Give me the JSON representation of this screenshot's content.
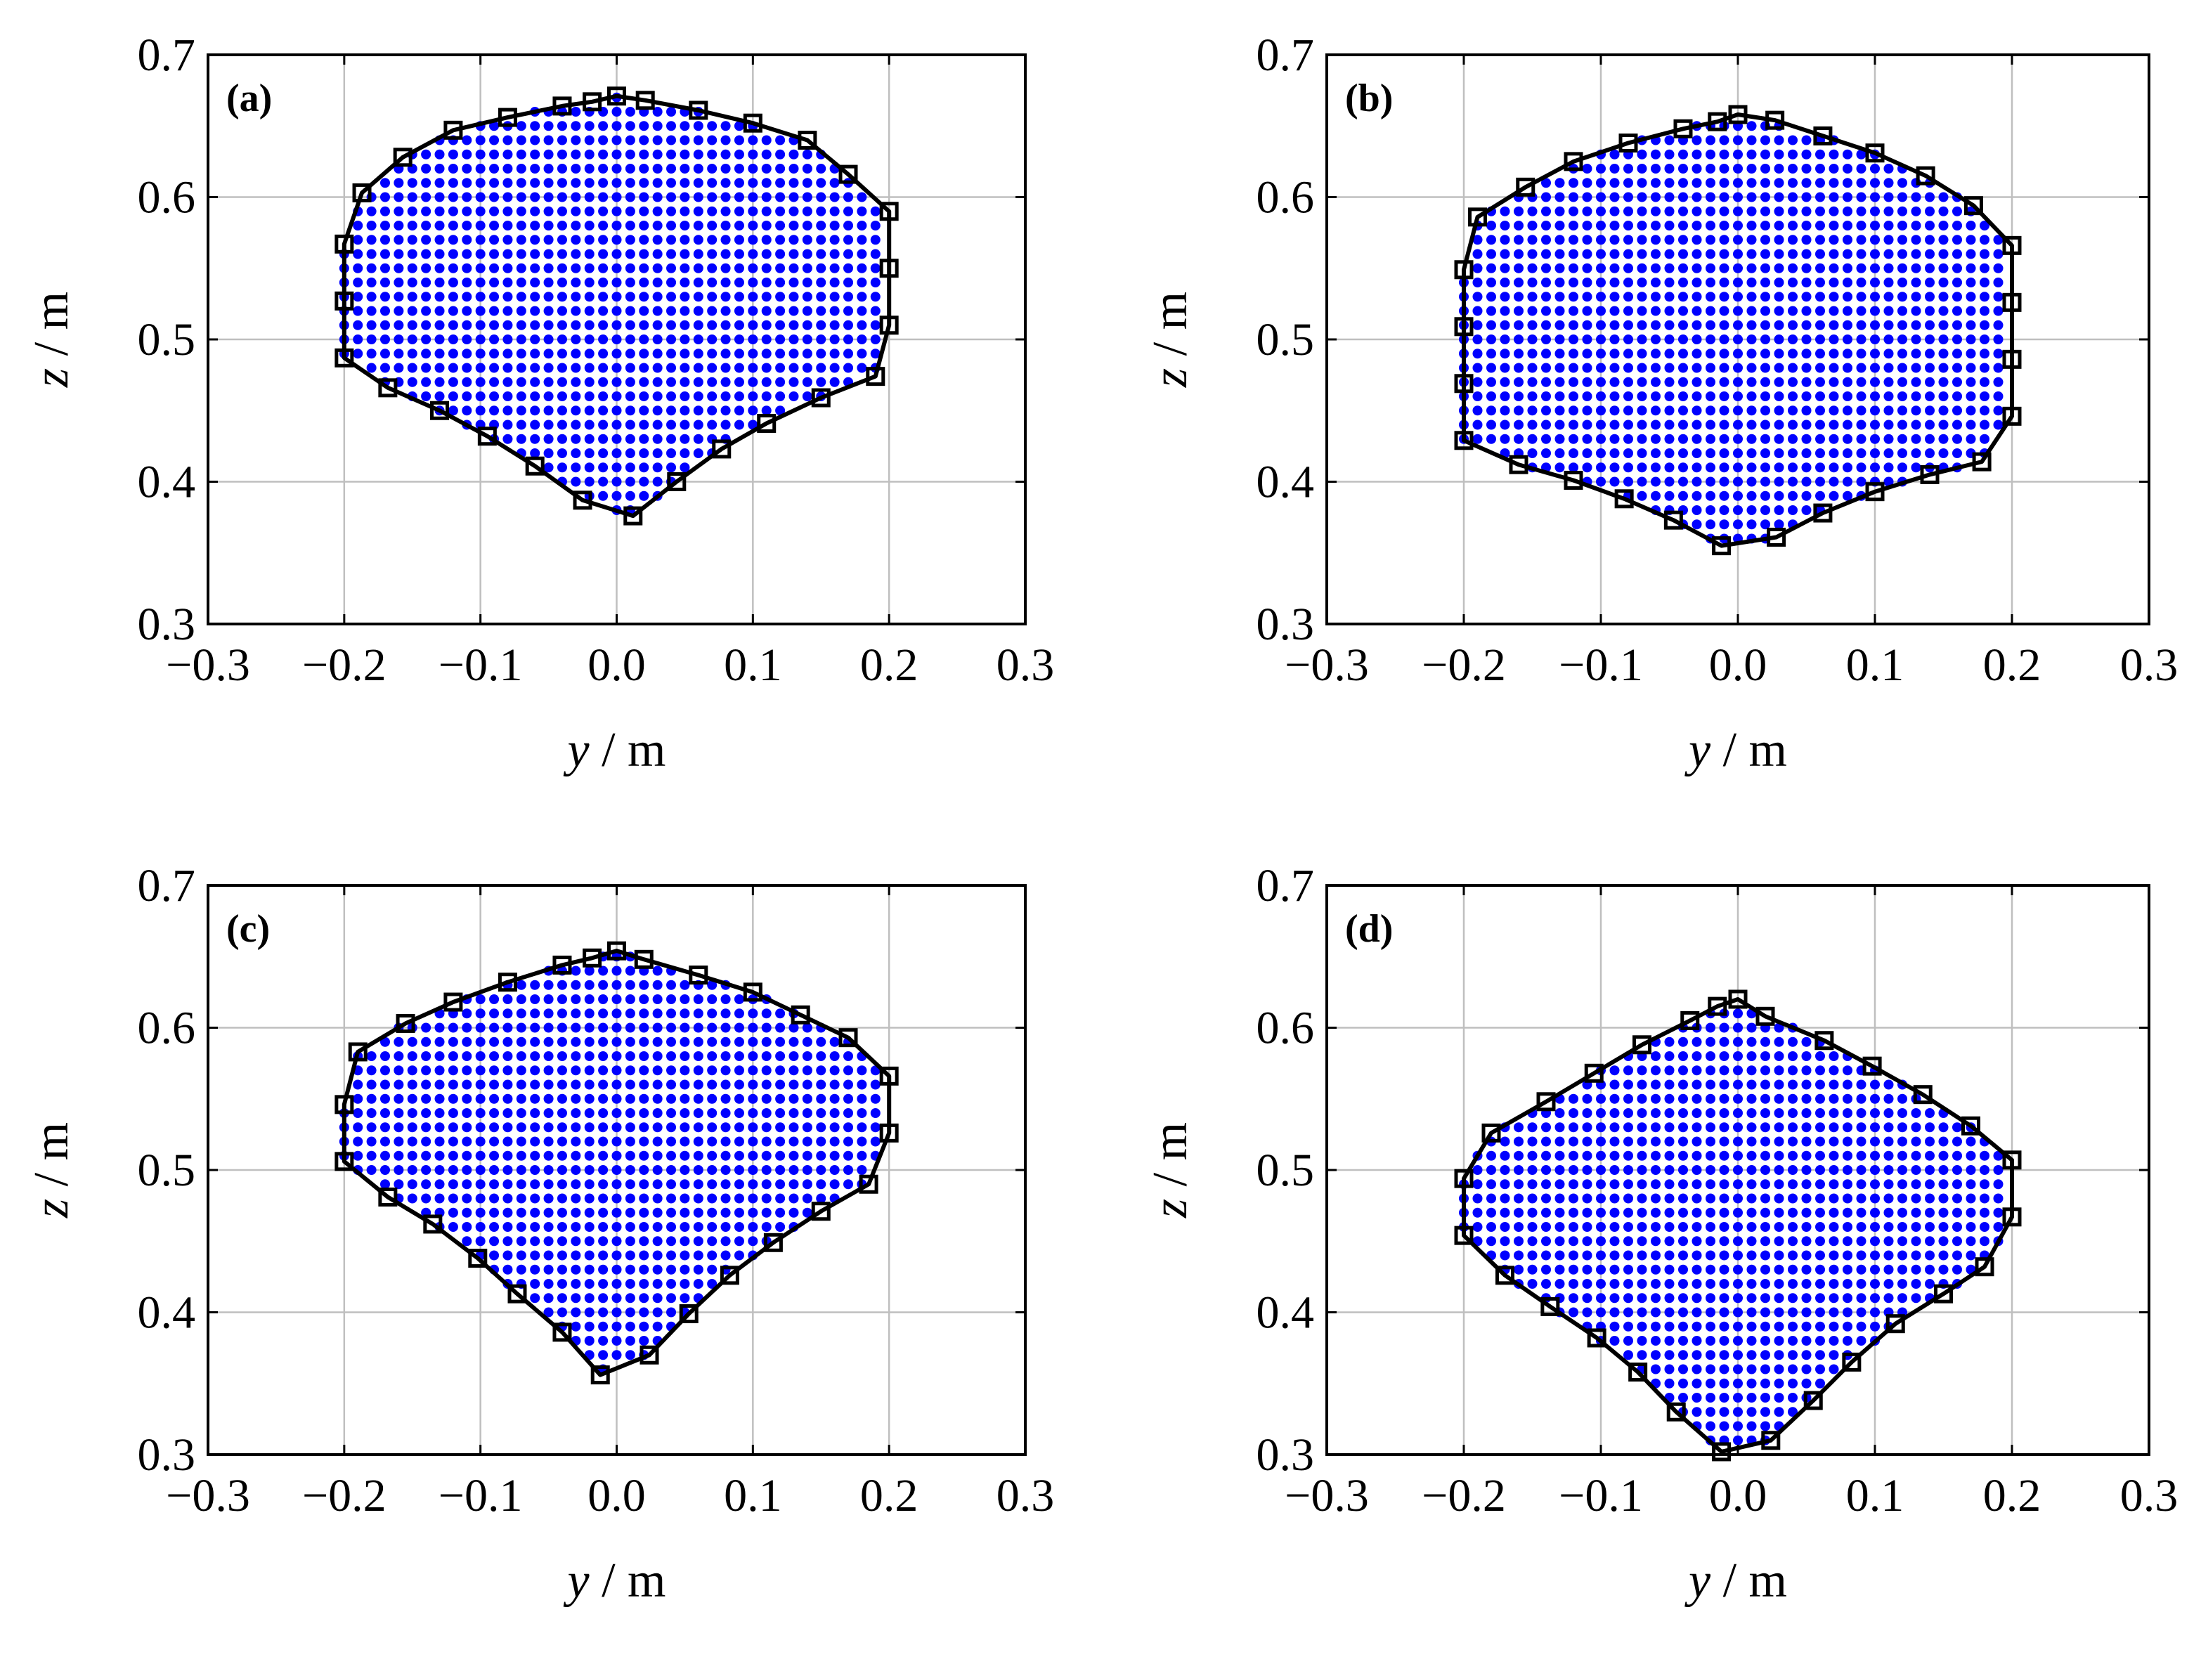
{
  "colors": {
    "interior_points": "#0000ff",
    "boundary": "#000000",
    "grid": "#bfbfbf"
  },
  "chart_data": [
    {
      "type": "scatter",
      "panel_label": "(a)",
      "xlabel_var": "y",
      "xlabel_unit": " / m",
      "ylabel_var": "z",
      "ylabel_unit": " / m",
      "xlim": [
        -0.3,
        0.3
      ],
      "ylim": [
        0.3,
        0.7
      ],
      "xticks": [
        -0.3,
        -0.2,
        -0.1,
        0.0,
        0.1,
        0.2,
        0.3
      ],
      "xtick_labels": [
        "−0.3",
        "−0.2",
        "−0.1",
        "0.0",
        "0.1",
        "0.2",
        "0.3"
      ],
      "yticks": [
        0.3,
        0.4,
        0.5,
        0.6,
        0.7
      ],
      "ytick_labels": [
        "0.3",
        "0.4",
        "0.5",
        "0.6",
        "0.7"
      ],
      "grid": true,
      "interior_points_spacing": [
        0.01,
        0.01
      ],
      "boundary_points": [
        [
          0.0,
          0.671
        ],
        [
          0.021,
          0.668
        ],
        [
          0.06,
          0.661
        ],
        [
          0.1,
          0.652
        ],
        [
          0.14,
          0.64
        ],
        [
          0.17,
          0.616
        ],
        [
          0.2,
          0.59
        ],
        [
          0.2,
          0.55
        ],
        [
          0.2,
          0.51
        ],
        [
          0.19,
          0.474
        ],
        [
          0.15,
          0.459
        ],
        [
          0.11,
          0.441
        ],
        [
          0.077,
          0.423
        ],
        [
          0.044,
          0.4
        ],
        [
          0.012,
          0.376
        ],
        [
          -0.025,
          0.387
        ],
        [
          -0.06,
          0.411
        ],
        [
          -0.095,
          0.432
        ],
        [
          -0.13,
          0.45
        ],
        [
          -0.168,
          0.466
        ],
        [
          -0.2,
          0.487
        ],
        [
          -0.2,
          0.527
        ],
        [
          -0.2,
          0.567
        ],
        [
          -0.187,
          0.603
        ],
        [
          -0.157,
          0.628
        ],
        [
          -0.12,
          0.647
        ],
        [
          -0.08,
          0.656
        ],
        [
          -0.04,
          0.664
        ],
        [
          -0.018,
          0.667
        ]
      ]
    },
    {
      "type": "scatter",
      "panel_label": "(b)",
      "xlabel_var": "y",
      "xlabel_unit": " / m",
      "ylabel_var": "z",
      "ylabel_unit": " / m",
      "xlim": [
        -0.3,
        0.3
      ],
      "ylim": [
        0.3,
        0.7
      ],
      "xticks": [
        -0.3,
        -0.2,
        -0.1,
        0.0,
        0.1,
        0.2,
        0.3
      ],
      "xtick_labels": [
        "−0.3",
        "−0.2",
        "−0.1",
        "0.0",
        "0.1",
        "0.2",
        "0.3"
      ],
      "yticks": [
        0.3,
        0.4,
        0.5,
        0.6,
        0.7
      ],
      "ytick_labels": [
        "0.3",
        "0.4",
        "0.5",
        "0.6",
        "0.7"
      ],
      "grid": true,
      "interior_points_spacing": [
        0.01,
        0.01
      ],
      "boundary_points": [
        [
          0.0,
          0.658
        ],
        [
          0.027,
          0.654
        ],
        [
          0.062,
          0.643
        ],
        [
          0.1,
          0.631
        ],
        [
          0.137,
          0.615
        ],
        [
          0.172,
          0.594
        ],
        [
          0.2,
          0.566
        ],
        [
          0.2,
          0.526
        ],
        [
          0.2,
          0.486
        ],
        [
          0.2,
          0.446
        ],
        [
          0.178,
          0.414
        ],
        [
          0.14,
          0.405
        ],
        [
          0.1,
          0.393
        ],
        [
          0.062,
          0.378
        ],
        [
          0.028,
          0.361
        ],
        [
          -0.012,
          0.355
        ],
        [
          -0.047,
          0.373
        ],
        [
          -0.083,
          0.388
        ],
        [
          -0.12,
          0.401
        ],
        [
          -0.16,
          0.412
        ],
        [
          -0.2,
          0.429
        ],
        [
          -0.2,
          0.469
        ],
        [
          -0.2,
          0.509
        ],
        [
          -0.2,
          0.549
        ],
        [
          -0.19,
          0.586
        ],
        [
          -0.155,
          0.607
        ],
        [
          -0.12,
          0.625
        ],
        [
          -0.08,
          0.638
        ],
        [
          -0.04,
          0.648
        ],
        [
          -0.015,
          0.653
        ]
      ]
    },
    {
      "type": "scatter",
      "panel_label": "(c)",
      "xlabel_var": "y",
      "xlabel_unit": " / m",
      "ylabel_var": "z",
      "ylabel_unit": " / m",
      "xlim": [
        -0.3,
        0.3
      ],
      "ylim": [
        0.3,
        0.7
      ],
      "xticks": [
        -0.3,
        -0.2,
        -0.1,
        0.0,
        0.1,
        0.2,
        0.3
      ],
      "xtick_labels": [
        "−0.3",
        "−0.2",
        "−0.1",
        "0.0",
        "0.1",
        "0.2",
        "0.3"
      ],
      "yticks": [
        0.3,
        0.4,
        0.5,
        0.6,
        0.7
      ],
      "ytick_labels": [
        "0.3",
        "0.4",
        "0.5",
        "0.6",
        "0.7"
      ],
      "grid": true,
      "interior_points_spacing": [
        0.01,
        0.01
      ],
      "boundary_points": [
        [
          0.0,
          0.654
        ],
        [
          0.02,
          0.648
        ],
        [
          0.06,
          0.637
        ],
        [
          0.1,
          0.625
        ],
        [
          0.135,
          0.609
        ],
        [
          0.17,
          0.593
        ],
        [
          0.2,
          0.566
        ],
        [
          0.2,
          0.526
        ],
        [
          0.185,
          0.49
        ],
        [
          0.15,
          0.471
        ],
        [
          0.115,
          0.449
        ],
        [
          0.083,
          0.426
        ],
        [
          0.053,
          0.399
        ],
        [
          0.024,
          0.37
        ],
        [
          -0.012,
          0.356
        ],
        [
          -0.04,
          0.386
        ],
        [
          -0.073,
          0.413
        ],
        [
          -0.102,
          0.438
        ],
        [
          -0.135,
          0.462
        ],
        [
          -0.168,
          0.481
        ],
        [
          -0.2,
          0.506
        ],
        [
          -0.2,
          0.546
        ],
        [
          -0.19,
          0.583
        ],
        [
          -0.155,
          0.603
        ],
        [
          -0.12,
          0.618
        ],
        [
          -0.08,
          0.632
        ],
        [
          -0.04,
          0.644
        ],
        [
          -0.018,
          0.649
        ]
      ]
    },
    {
      "type": "scatter",
      "panel_label": "(d)",
      "xlabel_var": "y",
      "xlabel_unit": " / m",
      "ylabel_var": "z",
      "ylabel_unit": " / m",
      "xlim": [
        -0.3,
        0.3
      ],
      "ylim": [
        0.3,
        0.7
      ],
      "xticks": [
        -0.3,
        -0.2,
        -0.1,
        0.0,
        0.1,
        0.2,
        0.3
      ],
      "xtick_labels": [
        "−0.3",
        "−0.2",
        "−0.1",
        "0.0",
        "0.1",
        "0.2",
        "0.3"
      ],
      "yticks": [
        0.3,
        0.4,
        0.5,
        0.6,
        0.7
      ],
      "ytick_labels": [
        "0.3",
        "0.4",
        "0.5",
        "0.6",
        "0.7"
      ],
      "grid": true,
      "interior_points_spacing": [
        0.01,
        0.01
      ],
      "boundary_points": [
        [
          0.0,
          0.62
        ],
        [
          0.02,
          0.608
        ],
        [
          0.063,
          0.591
        ],
        [
          0.098,
          0.573
        ],
        [
          0.135,
          0.553
        ],
        [
          0.17,
          0.531
        ],
        [
          0.2,
          0.507
        ],
        [
          0.2,
          0.467
        ],
        [
          0.18,
          0.432
        ],
        [
          0.15,
          0.413
        ],
        [
          0.115,
          0.392
        ],
        [
          0.083,
          0.365
        ],
        [
          0.055,
          0.338
        ],
        [
          0.024,
          0.31
        ],
        [
          -0.012,
          0.302
        ],
        [
          -0.045,
          0.33
        ],
        [
          -0.073,
          0.358
        ],
        [
          -0.103,
          0.382
        ],
        [
          -0.137,
          0.404
        ],
        [
          -0.17,
          0.426
        ],
        [
          -0.2,
          0.454
        ],
        [
          -0.2,
          0.494
        ],
        [
          -0.18,
          0.526
        ],
        [
          -0.14,
          0.548
        ],
        [
          -0.105,
          0.568
        ],
        [
          -0.07,
          0.588
        ],
        [
          -0.035,
          0.605
        ],
        [
          -0.015,
          0.615
        ]
      ]
    }
  ]
}
